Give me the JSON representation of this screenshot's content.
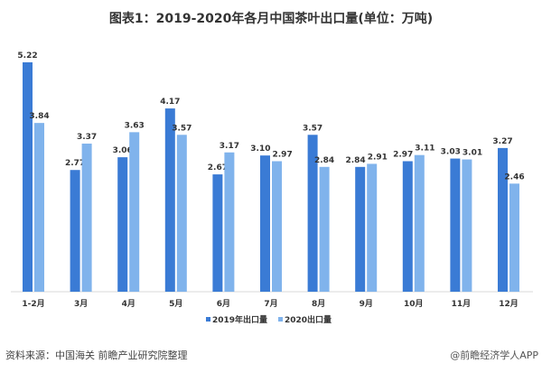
{
  "chart_data": {
    "type": "bar",
    "title": "图表1：2019-2020年各月中国茶叶出口量(单位：万吨)",
    "categories": [
      "1-2月",
      "3月",
      "4月",
      "5月",
      "6月",
      "7月",
      "8月",
      "9月",
      "10月",
      "11月",
      "12月"
    ],
    "series": [
      {
        "name": "2019年出口量",
        "color": "#3a7bd5",
        "values": [
          5.22,
          2.77,
          3.06,
          4.17,
          2.67,
          3.1,
          3.57,
          2.84,
          2.97,
          3.03,
          3.27
        ]
      },
      {
        "name": "2020出口量",
        "color": "#80b3ec",
        "values": [
          3.84,
          3.37,
          3.63,
          3.57,
          3.17,
          2.97,
          2.84,
          2.91,
          3.11,
          3.01,
          2.46
        ]
      }
    ],
    "data_labels": [
      [
        "5.22",
        "2.77",
        "3.06",
        "4.17",
        "2.67",
        "3.10",
        "3.57",
        "2.84",
        "2.97",
        "3.03",
        "3.27"
      ],
      [
        "3.84",
        "3.37",
        "3.63",
        "3.57",
        "3.17",
        "2.97",
        "2.84",
        "2.91",
        "3.11",
        "3.01",
        "2.46"
      ]
    ],
    "ylim": [
      0,
      5.5
    ],
    "grid": false,
    "legend": "bottom"
  },
  "source": "资料来源：中国海关 前瞻产业研究院整理",
  "credit": "@前瞻经济学人APP"
}
